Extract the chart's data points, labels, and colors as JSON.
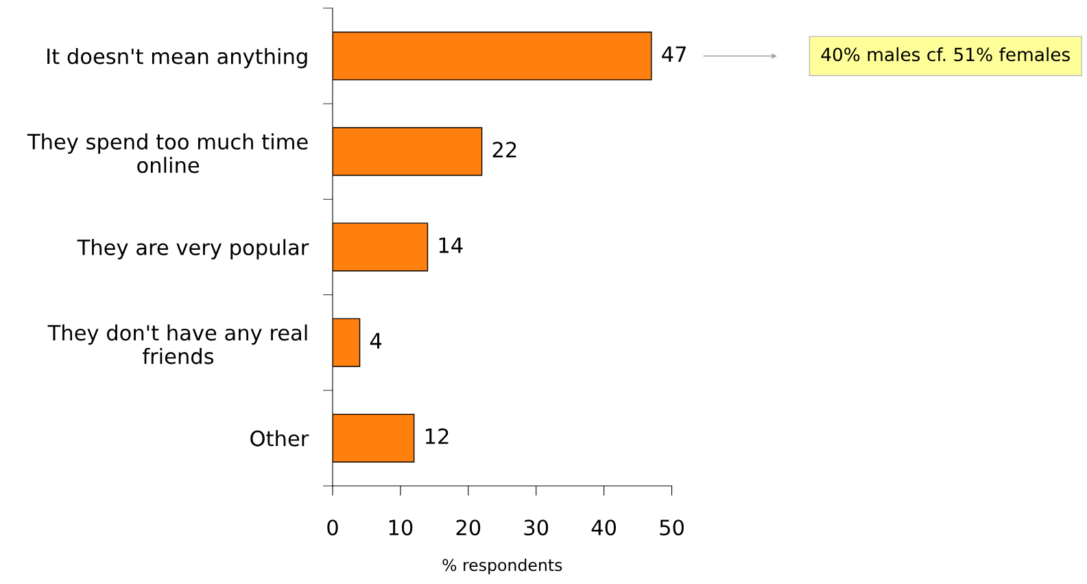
{
  "chart_data": {
    "type": "bar",
    "orientation": "horizontal",
    "categories": [
      "It doesn't mean anything",
      "They spend too much time online",
      "They are very popular",
      "They don't have any real friends",
      "Other"
    ],
    "values": [
      47,
      22,
      14,
      4,
      12
    ],
    "color": "#ff7f0f",
    "xlim": [
      0,
      50
    ],
    "xticks": [
      0,
      10,
      20,
      30,
      40,
      50
    ],
    "xlabel": "% respondents",
    "data_labels": true,
    "annotations": [
      "40% males cf. 51% females"
    ]
  }
}
